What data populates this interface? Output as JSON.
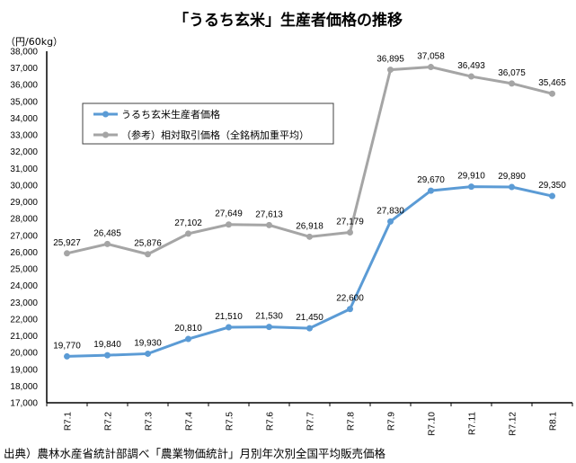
{
  "chart_data": {
    "type": "line",
    "title": "「うるち玄米」生産者価格の推移",
    "ylabel": "（円/60kg）",
    "ylim": [
      17000,
      38000
    ],
    "ytick_step": 1000,
    "grid": false,
    "legend_placement": "upper-left",
    "categories": [
      "R7.1",
      "R7.2",
      "R7.3",
      "R7.4",
      "R7.5",
      "R7.6",
      "R7.7",
      "R7.8",
      "R7.9",
      "R7.10",
      "R7.11",
      "R7.12",
      "R8.1"
    ],
    "series": [
      {
        "name": "うるち玄米生産者価格",
        "color": "#5b9bd5",
        "values": [
          19770,
          19840,
          19930,
          20810,
          21510,
          21530,
          21450,
          22600,
          27830,
          29670,
          29910,
          29890,
          29350
        ]
      },
      {
        "name": "（参考）相対取引価格（全銘柄加重平均）",
        "color": "#a5a5a5",
        "values": [
          25927,
          26485,
          25876,
          27102,
          27649,
          27613,
          26918,
          27179,
          36895,
          37058,
          36493,
          36075,
          35465
        ]
      }
    ]
  },
  "source": "出典）農林水産省統計部調べ「農業物価統計」月別年次別全国平均販売価格"
}
